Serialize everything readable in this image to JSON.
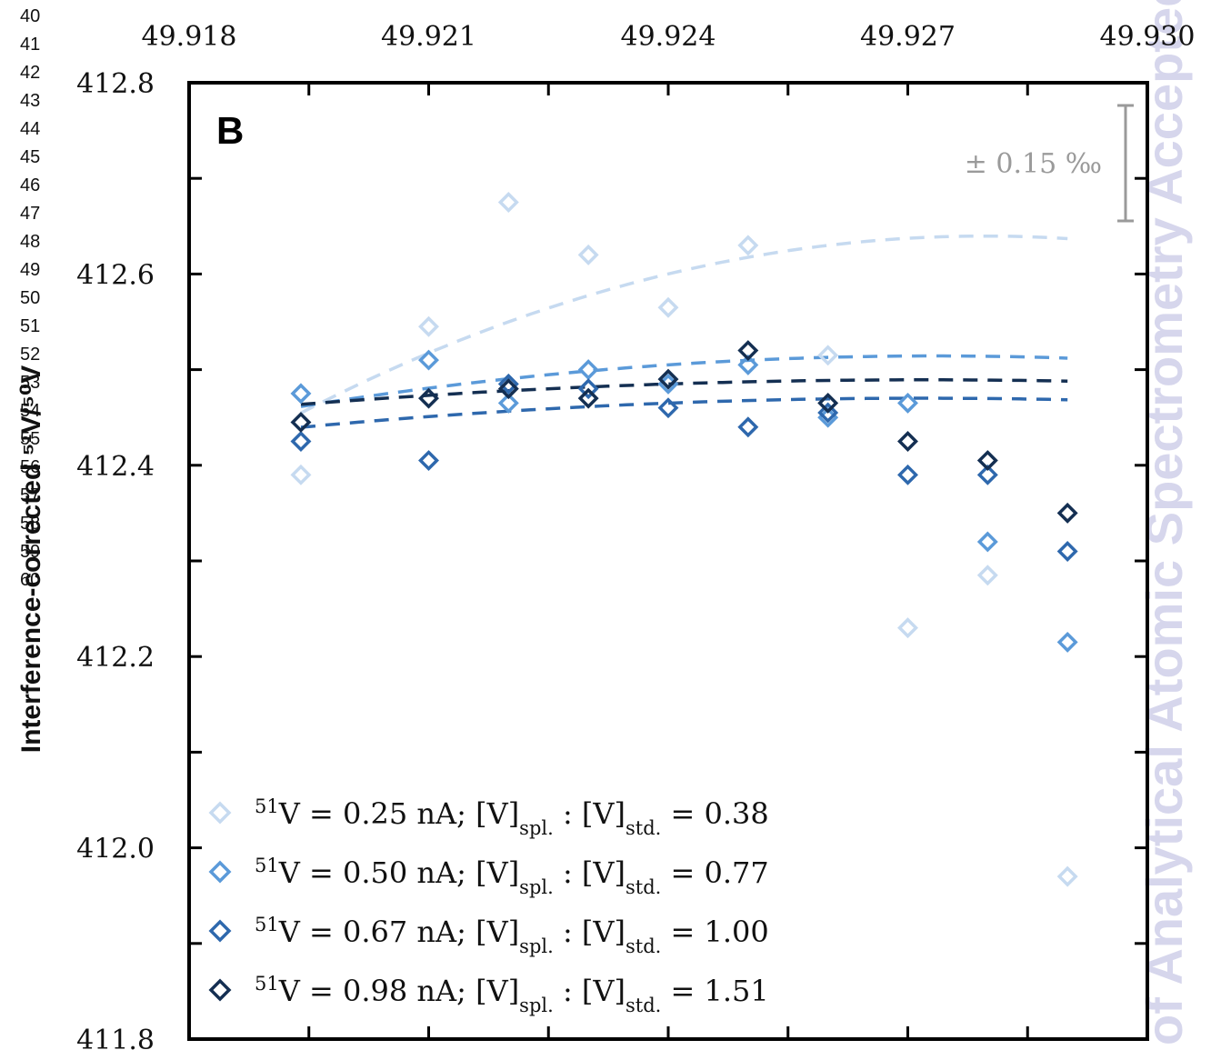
{
  "watermark": "of Analytical Atomic Spectrometry Accepted M",
  "line_numbers": [
    "40",
    "41",
    "42",
    "43",
    "44",
    "45",
    "46",
    "47",
    "48",
    "49",
    "50",
    "51",
    "52",
    "53",
    "54",
    "55",
    "56",
    "57",
    "58",
    "59",
    "60"
  ],
  "chart_data": {
    "type": "scatter",
    "panel_label": "B",
    "ylabel": "Interference-corrected ⁵¹V/⁵⁰V",
    "xlim": [
      49.918,
      49.93
    ],
    "ylim": [
      411.8,
      412.8
    ],
    "x_ticks": [
      "49.918",
      "49.921",
      "49.924",
      "49.927",
      "49.930"
    ],
    "y_ticks": [
      "412.8",
      "412.6",
      "412.4",
      "412.2",
      "412.0",
      "411.8"
    ],
    "x_tick_values": [
      49.918,
      49.921,
      49.924,
      49.927,
      49.93
    ],
    "y_tick_values": [
      412.8,
      412.6,
      412.4,
      412.2,
      412.0,
      411.8
    ],
    "scale_bar_label": "± 0.15 ‰",
    "scale_bar_color": "#9a9a9a",
    "legend_position": "bottom-left",
    "series": [
      {
        "name": "51V = 0.25 nA;  [V]spl. : [V]std. = 0.38",
        "legend": {
          "sup": "51",
          "main": "V = 0.25 nA;  [V]",
          "sub1": "spl.",
          "mid": " : [V]",
          "sub2": "std.",
          "end": " = 0.38"
        },
        "color": "#c6daf0",
        "x": [
          49.9194,
          49.921,
          49.922,
          49.923,
          49.924,
          49.925,
          49.926,
          49.927,
          49.928,
          49.929
        ],
        "y": [
          412.39,
          412.545,
          412.675,
          412.62,
          412.565,
          412.63,
          412.515,
          412.23,
          412.285,
          411.97
        ],
        "fit": [
          -2520,
          20.0,
          412.6
        ]
      },
      {
        "name": "51V = 0.50 nA;  [V]spl. : [V]std. = 0.77",
        "legend": {
          "sup": "51",
          "main": "V = 0.50 nA;  [V]",
          "sub1": "spl.",
          "mid": " : [V]",
          "sub2": "std.",
          "end": " = 0.77"
        },
        "color": "#5b9ad9",
        "x": [
          49.9194,
          49.921,
          49.922,
          49.923,
          49.924,
          49.925,
          49.926,
          49.927,
          49.928,
          49.929
        ],
        "y": [
          412.475,
          412.51,
          412.465,
          412.5,
          412.485,
          412.505,
          412.45,
          412.465,
          412.32,
          412.215
        ],
        "fit": [
          -840,
          5.6,
          412.505
        ]
      },
      {
        "name": "51V = 0.67 nA;  [V]spl. : [V]std. = 1.00",
        "legend": {
          "sup": "51",
          "main": "V = 0.67 nA;  [V]",
          "sub1": "spl.",
          "mid": " : [V]",
          "sub2": "std.",
          "end": " = 1.00"
        },
        "color": "#2e68ad",
        "x": [
          49.9194,
          49.921,
          49.922,
          49.923,
          49.924,
          49.925,
          49.926,
          49.927,
          49.928,
          49.929
        ],
        "y": [
          412.425,
          412.405,
          412.485,
          412.48,
          412.46,
          412.44,
          412.455,
          412.39,
          412.39,
          412.31
        ],
        "fit": [
          -500,
          3.2,
          412.465
        ]
      },
      {
        "name": "51V = 0.98 nA;  [V]spl. : [V]std. = 1.51",
        "legend": {
          "sup": "51",
          "main": "V = 0.98 nA;  [V]",
          "sub1": "spl.",
          "mid": " : [V]",
          "sub2": "std.",
          "end": " = 1.51"
        },
        "color": "#142f52",
        "x": [
          49.9194,
          49.921,
          49.922,
          49.923,
          49.924,
          49.925,
          49.926,
          49.927,
          49.928,
          49.929
        ],
        "y": [
          412.445,
          412.47,
          412.48,
          412.47,
          412.49,
          412.52,
          412.465,
          412.425,
          412.405,
          412.35
        ],
        "fit": [
          -420,
          2.7,
          412.485
        ]
      }
    ]
  }
}
